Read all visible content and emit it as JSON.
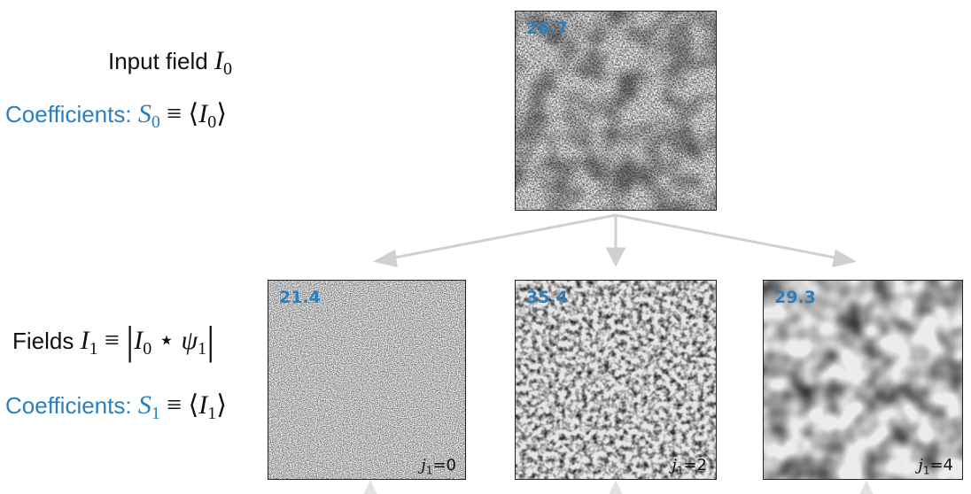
{
  "labels": {
    "input_prefix": "Input field",
    "input_symbol": "I",
    "input_sub": "0",
    "coef0_prefix": "Coefficients:",
    "coef0_S": "S",
    "coef0_S_sub": "0",
    "coef0_rhs": "≡ ⟨",
    "coef0_I": "I",
    "coef0_I_sub": "0",
    "coef0_close": "⟩",
    "fields_prefix": "Fields",
    "fields_symbol": "I",
    "fields_sub": "1",
    "fields_equiv": "≡",
    "fields_I0": "I",
    "fields_I0_sub": "0",
    "fields_star": "⋆",
    "fields_psi": "ψ",
    "fields_psi_sub": "1",
    "coef1_prefix": "Coefficients:",
    "coef1_S": "S",
    "coef1_S_sub": "1",
    "coef1_rhs": "≡ ⟨",
    "coef1_I": "I",
    "coef1_I_sub": "1",
    "coef1_close": "⟩"
  },
  "panels": {
    "input": {
      "value": "26.7"
    },
    "j0": {
      "value": "21.4",
      "scale_var": "j",
      "scale_sub": "1",
      "scale_eq": "=0"
    },
    "j2": {
      "value": "35.4",
      "scale_var": "j",
      "scale_sub": "1",
      "scale_eq": "=2"
    },
    "j4": {
      "value": "29.3",
      "scale_var": "j",
      "scale_sub": "1",
      "scale_eq": "=4"
    }
  },
  "colors": {
    "accent": "#2a7fbf",
    "arrow": "#d0d0d0",
    "text": "#111111"
  }
}
